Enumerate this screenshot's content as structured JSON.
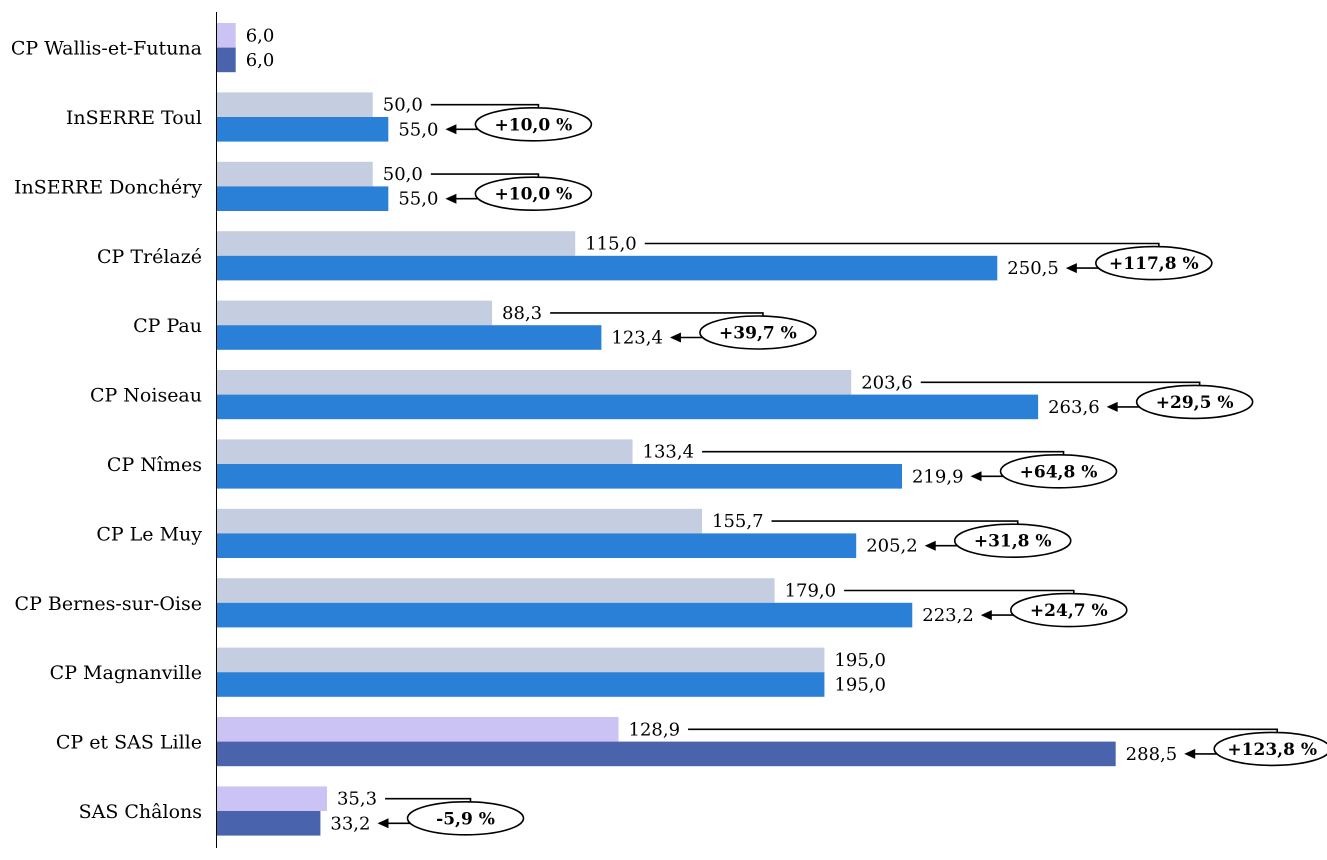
{
  "chart_data": {
    "type": "bar",
    "orientation": "horizontal",
    "categories": [
      "CP Wallis-et-Futuna",
      "InSERRE Toul",
      "InSERRE Donchéry",
      "CP Trélazé",
      "CP Pau",
      "CP Noiseau",
      "CP Nîmes",
      "CP Le Muy",
      "CP Bernes-sur-Oise",
      "CP Magnanville",
      "CP et SAS Lille",
      "SAS Châlons"
    ],
    "series": [
      {
        "values": [
          6.0,
          50.0,
          50.0,
          115.0,
          88.3,
          203.6,
          133.4,
          155.7,
          179.0,
          195.0,
          128.9,
          35.3
        ],
        "labels": [
          "6,0",
          "50,0",
          "50,0",
          "115,0",
          "88,3",
          "203,6",
          "133,4",
          "155,7",
          "179,0",
          "195,0",
          "128,9",
          "35,3"
        ]
      },
      {
        "values": [
          6.0,
          55.0,
          55.0,
          250.5,
          123.4,
          263.6,
          219.9,
          205.2,
          223.2,
          195.0,
          288.5,
          33.2
        ],
        "labels": [
          "6,0",
          "55,0",
          "55,0",
          "250,5",
          "123,4",
          "263,6",
          "219,9",
          "205,2",
          "223,2",
          "195,0",
          "288,5",
          "33,2"
        ]
      }
    ],
    "changes": [
      "",
      "+10,0 %",
      "+10,0 %",
      "+117,8 %",
      "+39,7 %",
      "+29,5 %",
      "+64,8 %",
      "+31,8 %",
      "+24,7 %",
      "",
      "+123,8 %",
      "-5,9 %"
    ],
    "group": [
      "alt",
      "std",
      "std",
      "std",
      "std",
      "std",
      "std",
      "std",
      "std",
      "std",
      "alt",
      "alt"
    ],
    "colors": {
      "std_first": "#c5cee0",
      "std_second": "#2a7fd6",
      "alt_first": "#cbc3f3",
      "alt_second": "#4a63ad"
    },
    "xlim": [
      0,
      300
    ],
    "grid": false,
    "legend": "none",
    "title": "",
    "xlabel": "",
    "ylabel": ""
  }
}
